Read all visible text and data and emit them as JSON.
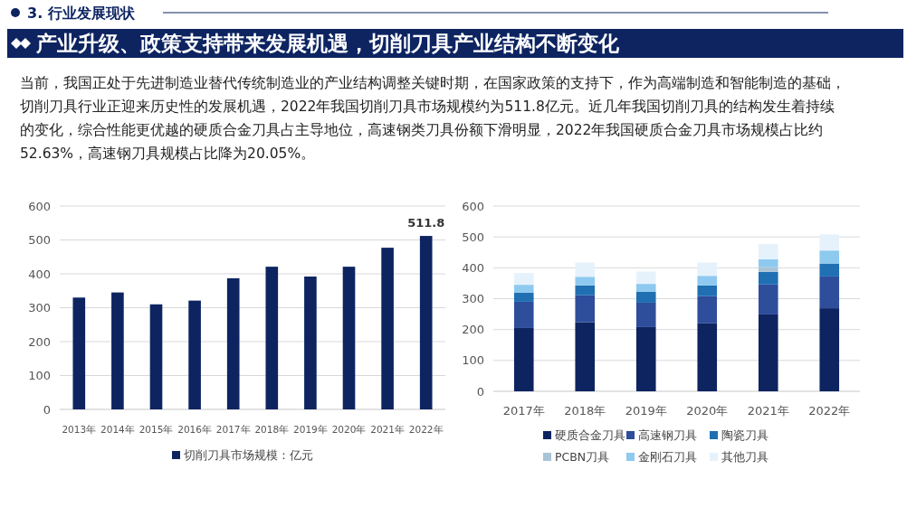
{
  "chart_data": [
    {
      "type": "other",
      "title": "3. 行业发展现状",
      "subtitle": "产业升级、政策支持带来发展机遇，切削刀具产业结构不断变化",
      "annotations": [
        "当前，我国正处于先进制造业替代传统制造业的产业结构调整关键时期，在国家政策的支持下，作为高端制造和智能制造的基础，切削刀具行业正迎来历史性的发展机遇，2022年我国切削刀具市场规模约为511.8亿元。近几年我国切削刀具的结构发生着持续的变化，综合性能更优越的硬质合金刀具占主导地位，高速钢类刀具份额下滑明显，2022年我国硬质合金刀具市场规模占比约52.63%，高速钢刀具规模占比降为20.05%。"
      ]
    },
    {
      "type": "bar",
      "categories": [
        "2013年",
        "2014年",
        "2015年",
        "2016年",
        "2017年",
        "2018年",
        "2019年",
        "2020年",
        "2021年",
        "2022年"
      ],
      "series": [
        {
          "name": "切削刀具市场规模：亿元",
          "color": "#0d2461",
          "values": [
            330,
            345,
            310,
            321,
            387,
            421,
            392,
            421,
            477,
            511.8
          ],
          "value_labels": [
            null,
            null,
            null,
            null,
            null,
            null,
            null,
            null,
            null,
            "511.8"
          ]
        }
      ],
      "ylim": [
        0,
        600
      ],
      "yticks": [
        0,
        100,
        200,
        300,
        400,
        500,
        600
      ],
      "grid": "y",
      "legend": "bottom"
    },
    {
      "type": "bar",
      "stacked": true,
      "categories": [
        "2017年",
        "2018年",
        "2019年",
        "2020年",
        "2021年",
        "2022年"
      ],
      "series": [
        {
          "name": "硬质合金刀具",
          "color": "#0d2461",
          "values": [
            205,
            224,
            208,
            220,
            249,
            269
          ]
        },
        {
          "name": "高速钢刀具",
          "color": "#2e4d9b",
          "values": [
            85,
            87,
            79,
            88,
            97,
            103
          ]
        },
        {
          "name": "陶瓷刀具",
          "color": "#1f6fb2",
          "values": [
            30,
            32,
            36,
            35,
            41,
            42
          ]
        },
        {
          "name": "PCBN刀具",
          "color": "#a9c4d6",
          "values": [
            null,
            null,
            null,
            null,
            15,
            null
          ]
        },
        {
          "name": "金刚石刀具",
          "color": "#8ec9ef",
          "values": [
            25,
            28,
            25,
            31,
            26,
            42
          ]
        },
        {
          "name": "其他刀具",
          "color": "#e6f2fb",
          "values": [
            38,
            46,
            40,
            43,
            49,
            52
          ]
        }
      ],
      "ylim": [
        0,
        600
      ],
      "yticks": [
        0,
        100,
        200,
        300,
        400,
        500,
        600
      ],
      "grid": "y",
      "legend": "bottom"
    }
  ]
}
